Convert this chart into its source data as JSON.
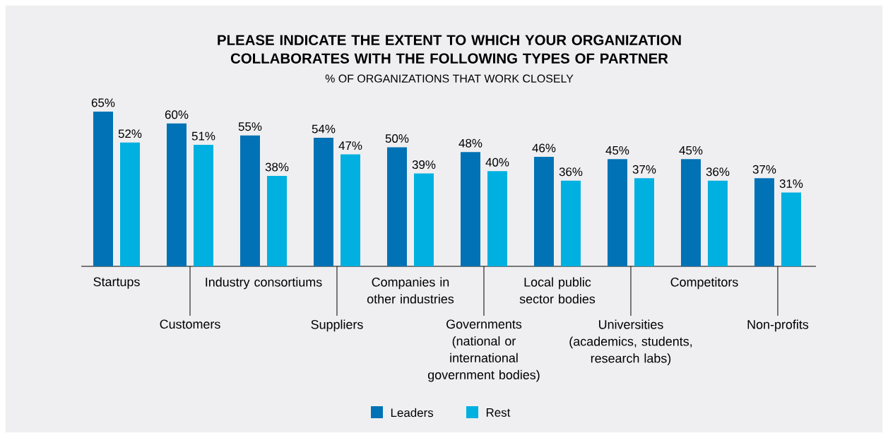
{
  "chart_data": {
    "type": "bar",
    "title": "PLEASE INDICATE THE EXTENT TO WHICH YOUR ORGANIZATION COLLABORATES WITH THE FOLLOWING TYPES OF PARTNER",
    "subtitle": "% OF ORGANIZATIONS THAT WORK CLOSELY",
    "categories": [
      "Startups",
      "Customers",
      "Industry consortiums",
      "Suppliers",
      "Companies in other industries",
      "Governments (national or international government bodies)",
      "Local public sector bodies",
      "Universities (academics, students, research labs)",
      "Competitors",
      "Non-profits"
    ],
    "series": [
      {
        "name": "Leaders",
        "color": "#0072b5",
        "values": [
          65,
          60,
          55,
          54,
          50,
          48,
          46,
          45,
          45,
          37
        ],
        "value_labels": [
          "65%",
          "60%",
          "55%",
          "54%",
          "50%",
          "48%",
          "46%",
          "45%",
          "45%",
          "37%"
        ]
      },
      {
        "name": "Rest",
        "color": "#00b0e0",
        "values": [
          52,
          51,
          38,
          47,
          39,
          40,
          36,
          37,
          36,
          31
        ],
        "value_labels": [
          "52%",
          "51%",
          "38%",
          "47%",
          "39%",
          "40%",
          "36%",
          "37%",
          "36%",
          "31%"
        ]
      }
    ],
    "legend": "bottom"
  }
}
